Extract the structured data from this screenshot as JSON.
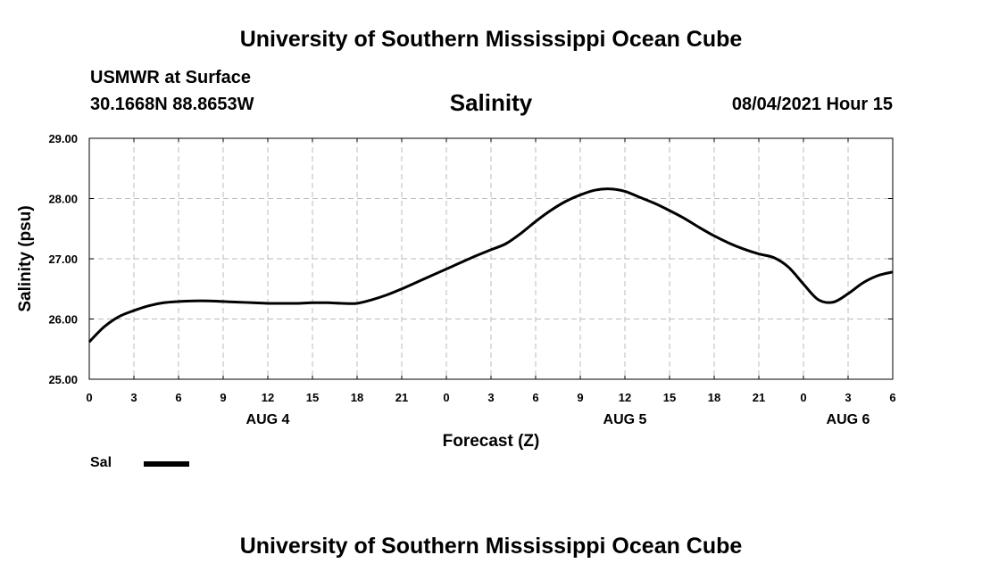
{
  "header": {
    "title": "University of Southern Mississippi Ocean Cube",
    "station": "USMWR at Surface",
    "coords": "30.1668N  88.8653W",
    "datetime": "08/04/2021 Hour 15"
  },
  "footer": {
    "title": "University of Southern Mississippi Ocean Cube"
  },
  "legend": {
    "label": "Sal",
    "color": "#000000"
  },
  "chart_data": {
    "type": "line",
    "title": "Salinity",
    "xlabel": "Forecast (Z)",
    "ylabel": "Salinity (psu)",
    "ylim": [
      25.0,
      29.0
    ],
    "yticks": [
      "25.00",
      "26.00",
      "27.00",
      "28.00",
      "29.00"
    ],
    "xlim": [
      0,
      54
    ],
    "xtick_labels": [
      "0",
      "3",
      "6",
      "9",
      "12",
      "15",
      "18",
      "21",
      "0",
      "3",
      "6",
      "9",
      "12",
      "15",
      "18",
      "21",
      "0",
      "3",
      "6"
    ],
    "day_labels": [
      {
        "label": "AUG 4",
        "x": 12
      },
      {
        "label": "AUG 5",
        "x": 36
      },
      {
        "label": "AUG 6",
        "x": 51
      }
    ],
    "grid": true,
    "series": [
      {
        "name": "Sal",
        "x": [
          0,
          1,
          2,
          3,
          4,
          5,
          6,
          7,
          8,
          9,
          10,
          11,
          12,
          13,
          14,
          15,
          16,
          17,
          18,
          19,
          20,
          21,
          22,
          23,
          24,
          25,
          26,
          27,
          28,
          29,
          30,
          31,
          32,
          33,
          34,
          35,
          36,
          37,
          38,
          39,
          40,
          41,
          42,
          43,
          44,
          45,
          46,
          47,
          48,
          49,
          50,
          51,
          52,
          53,
          54
        ],
        "values": [
          25.62,
          25.87,
          26.04,
          26.14,
          26.22,
          26.27,
          26.29,
          26.3,
          26.3,
          26.29,
          26.28,
          26.27,
          26.26,
          26.26,
          26.26,
          26.27,
          26.27,
          26.26,
          26.26,
          26.32,
          26.4,
          26.5,
          26.61,
          26.72,
          26.83,
          26.94,
          27.05,
          27.15,
          27.25,
          27.42,
          27.62,
          27.8,
          27.95,
          28.06,
          28.14,
          28.16,
          28.12,
          28.02,
          27.92,
          27.8,
          27.67,
          27.52,
          27.38,
          27.26,
          27.16,
          27.08,
          27.02,
          26.86,
          26.58,
          26.32,
          26.28,
          26.42,
          26.6,
          26.72,
          26.78
        ]
      }
    ]
  }
}
